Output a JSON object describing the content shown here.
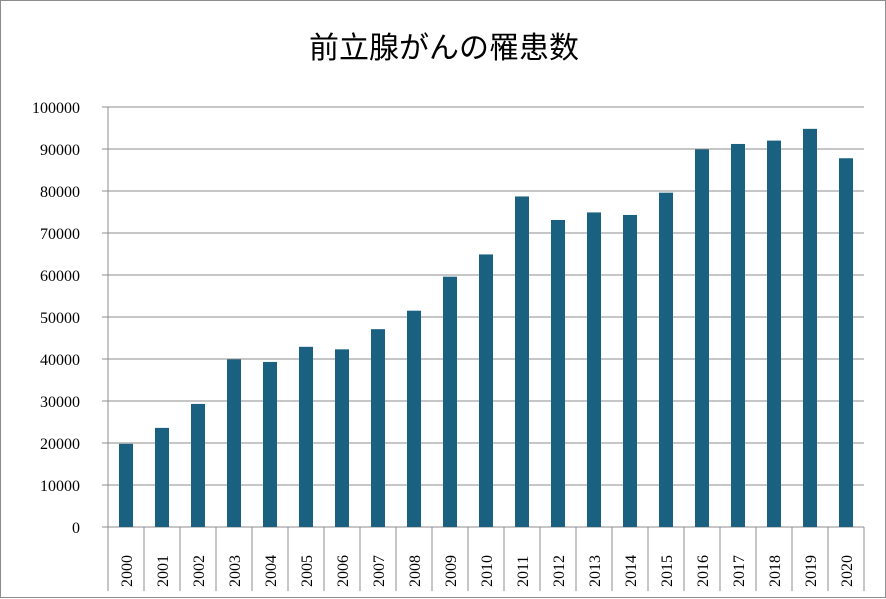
{
  "chart_data": {
    "type": "bar",
    "title": "前立腺がんの罹患数",
    "xlabel": "",
    "ylabel": "",
    "categories": [
      "2000",
      "2001",
      "2002",
      "2003",
      "2004",
      "2005",
      "2006",
      "2007",
      "2008",
      "2009",
      "2010",
      "2011",
      "2012",
      "2013",
      "2014",
      "2015",
      "2016",
      "2017",
      "2018",
      "2019",
      "2020"
    ],
    "values": [
      19800,
      23600,
      29300,
      39900,
      39300,
      42900,
      42300,
      47100,
      51500,
      59600,
      64900,
      78700,
      73100,
      74900,
      74300,
      79600,
      89900,
      91200,
      92000,
      94800,
      87800
    ],
    "ylim": [
      0,
      100000
    ],
    "yticks": [
      0,
      10000,
      20000,
      30000,
      40000,
      50000,
      60000,
      70000,
      80000,
      90000,
      100000
    ],
    "grid": true,
    "legend": "none",
    "bar_color": "#1a6080",
    "grid_color": "#8c8c8c"
  }
}
